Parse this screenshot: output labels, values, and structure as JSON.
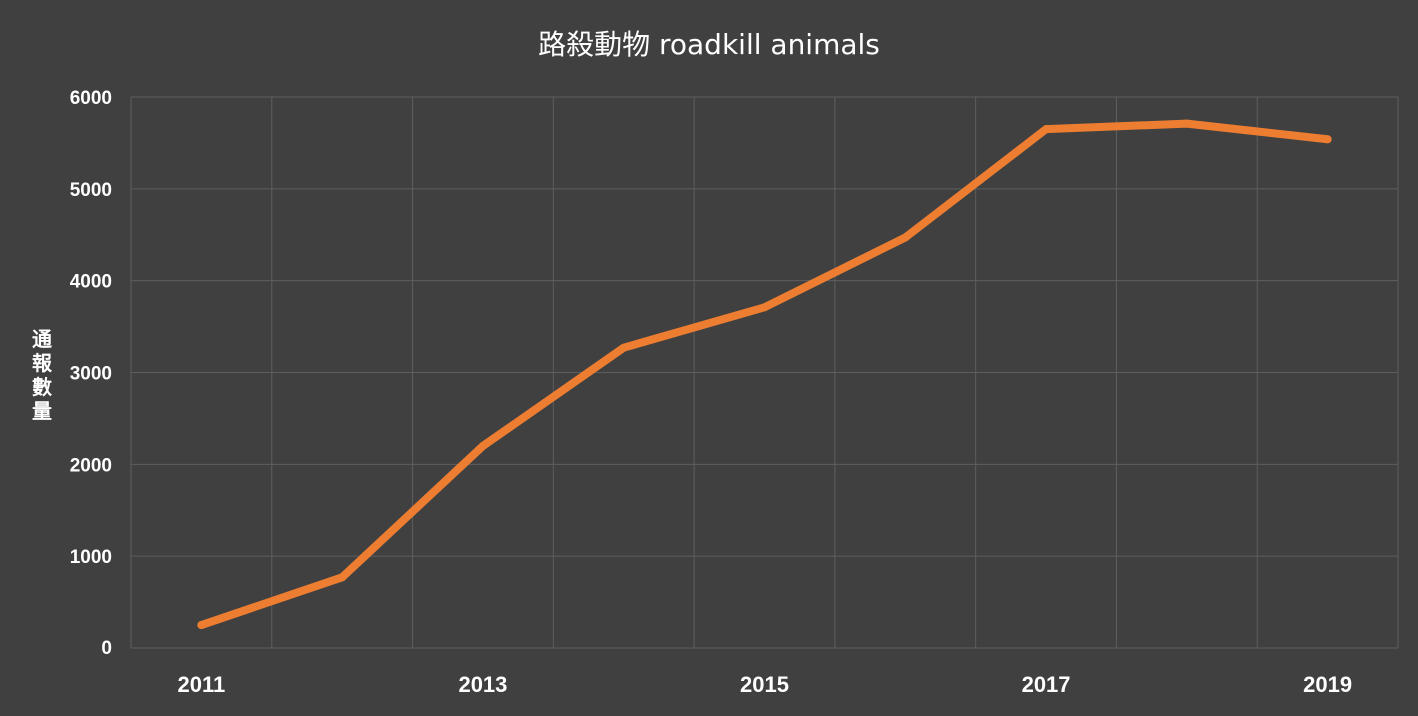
{
  "chart_data": {
    "type": "line",
    "title": "路殺動物 roadkill animals",
    "ylabel": "通報數量",
    "xlabel": "",
    "x": [
      2011,
      2012,
      2013,
      2014,
      2015,
      2016,
      2017,
      2018,
      2019
    ],
    "x_tick_labels": [
      "2011",
      "2013",
      "2015",
      "2017",
      "2019"
    ],
    "y_tick_labels": [
      "0",
      "1000",
      "2000",
      "3000",
      "4000",
      "5000",
      "6000"
    ],
    "ylim": [
      0,
      6000
    ],
    "grid": true,
    "series": [
      {
        "values": [
          250,
          770,
          2200,
          3270,
          3710,
          4470,
          5650,
          5710,
          5540
        ]
      }
    ],
    "colors": {
      "background": "#404040",
      "line": "#ed7d31",
      "grid": "#5e5e5e",
      "text": "#ffffff"
    }
  }
}
